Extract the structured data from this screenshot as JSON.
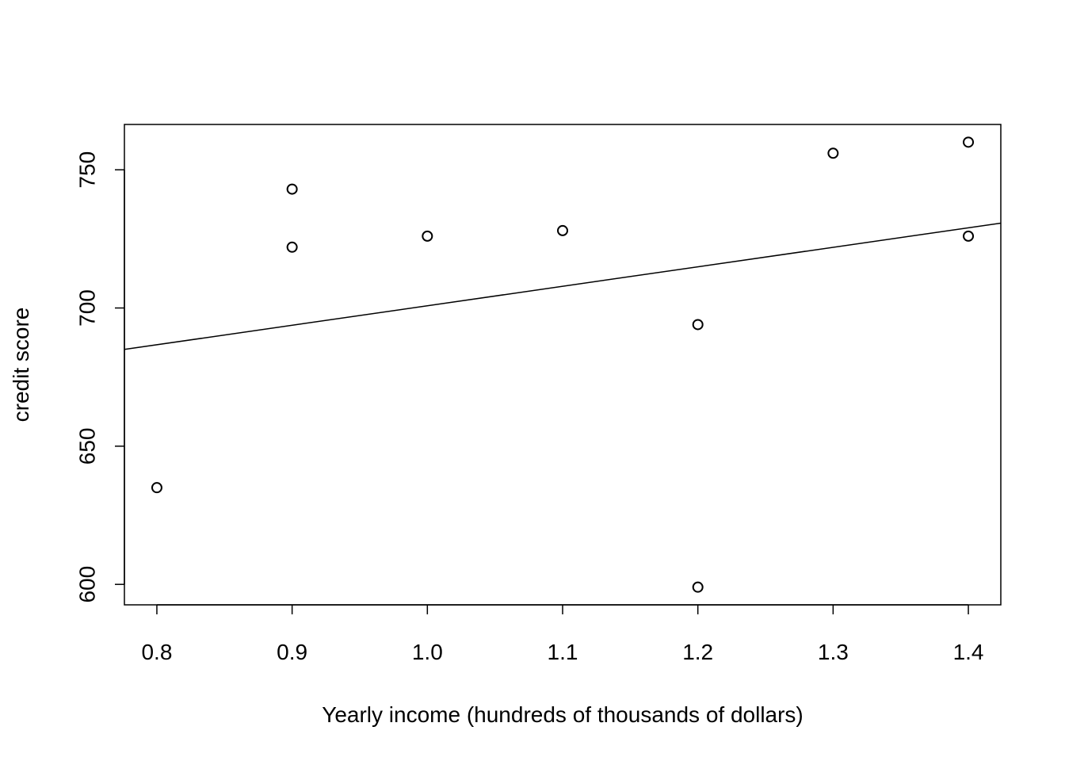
{
  "chart_data": {
    "type": "scatter",
    "title": "",
    "xlabel": "Yearly income (hundreds of thousands of dollars)",
    "ylabel": "credit score",
    "xlim": [
      0.776,
      1.424
    ],
    "ylim": [
      592.6,
      766.4
    ],
    "x_ticks": [
      0.8,
      0.9,
      1.0,
      1.1,
      1.2,
      1.3,
      1.4
    ],
    "x_tick_labels": [
      "0.8",
      "0.9",
      "1.0",
      "1.1",
      "1.2",
      "1.3",
      "1.4"
    ],
    "y_ticks": [
      600,
      650,
      700,
      750
    ],
    "y_tick_labels": [
      "600",
      "650",
      "700",
      "750"
    ],
    "grid": false,
    "points": [
      {
        "x": 0.8,
        "y": 635
      },
      {
        "x": 0.9,
        "y": 743
      },
      {
        "x": 0.9,
        "y": 722
      },
      {
        "x": 1.0,
        "y": 726
      },
      {
        "x": 1.1,
        "y": 728
      },
      {
        "x": 1.2,
        "y": 694
      },
      {
        "x": 1.2,
        "y": 599
      },
      {
        "x": 1.3,
        "y": 756
      },
      {
        "x": 1.4,
        "y": 760
      },
      {
        "x": 1.4,
        "y": 726
      }
    ],
    "regression_line": {
      "slope": 70.5,
      "intercept": 630.3
    },
    "colors": {
      "points": "#000000",
      "line": "#000000"
    }
  }
}
